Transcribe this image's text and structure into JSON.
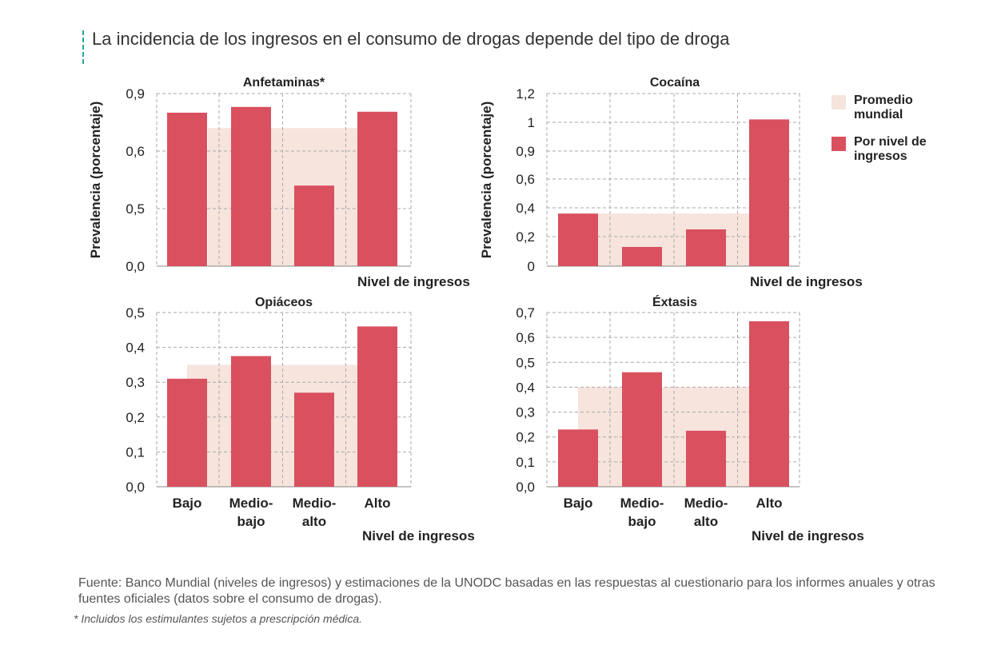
{
  "title": "La incidencia de los ingresos en el consumo de drogas depende del tipo de droga",
  "legend": {
    "average_label": "Promedio mundial",
    "income_label": "Por nivel de ingresos"
  },
  "colors": {
    "bar": "#d9505f",
    "average": "#f6e4dd",
    "grid": "#aaaaaa",
    "accent": "#2ba3a8"
  },
  "source": "Fuente: Banco Mundial (niveles de ingresos) y estimaciones de la UNODC basadas en las respuestas al cuestionario para los informes anuales y otras fuentes oficiales (datos sobre el consumo de drogas).",
  "footnote": "* Incluidos los estimulantes sujetos a prescripción médica.",
  "chart_data": [
    {
      "type": "bar",
      "title": "Anfetaminas*",
      "ylabel": "Prevalencia (porcentaje)",
      "xlabel": "Nivel de ingresos",
      "categories": [
        "Bajo",
        "Medio-bajo",
        "Medio-alto",
        "Alto"
      ],
      "show_category_labels": false,
      "yticks": [
        "0,0",
        "0,5",
        "0,6",
        "0,9"
      ],
      "series": [
        {
          "name": "Por nivel de ingresos",
          "values": [
            0.8,
            0.83,
            0.54,
            0.805
          ]
        },
        {
          "name": "Promedio mundial",
          "values": [
            0.72,
            0.72,
            0.72,
            0.72
          ]
        }
      ]
    },
    {
      "type": "bar",
      "title": "Cocaína",
      "ylabel": "Prevalencia (porcentaje)",
      "xlabel": "Nivel de ingresos",
      "categories": [
        "Bajo",
        "Medio-bajo",
        "Medio-alto",
        "Alto"
      ],
      "show_category_labels": false,
      "yticks": [
        "0",
        "0,2",
        "0,4",
        "0,6",
        "0,9",
        "1",
        "1,2"
      ],
      "series": [
        {
          "name": "Por nivel de ingresos",
          "values": [
            0.36,
            0.13,
            0.25,
            1.02
          ]
        },
        {
          "name": "Promedio mundial",
          "values": [
            0.36,
            0.36,
            0.36,
            0.36
          ]
        }
      ]
    },
    {
      "type": "bar",
      "title": "Opiáceos",
      "ylabel": "",
      "xlabel": "Nivel de ingresos",
      "categories": [
        "Bajo",
        "Medio-bajo",
        "Medio-alto",
        "Alto"
      ],
      "category_lines": [
        [
          "Bajo"
        ],
        [
          "Medio-",
          "bajo"
        ],
        [
          "Medio-",
          "alto"
        ],
        [
          "Alto"
        ]
      ],
      "show_category_labels": true,
      "yticks": [
        "0,0",
        "0,1",
        "0,2",
        "0,3",
        "0,4",
        "0,5"
      ],
      "ylim": [
        0,
        0.5
      ],
      "series": [
        {
          "name": "Por nivel de ingresos",
          "values": [
            0.31,
            0.375,
            0.27,
            0.46
          ]
        },
        {
          "name": "Promedio mundial",
          "values": [
            0.35,
            0.35,
            0.35,
            0.35
          ]
        }
      ]
    },
    {
      "type": "bar",
      "title": "Éxtasis",
      "ylabel": "",
      "xlabel": "Nivel de ingresos",
      "categories": [
        "Bajo",
        "Medio-bajo",
        "Medio-alto",
        "Alto"
      ],
      "category_lines": [
        [
          "Bajo"
        ],
        [
          "Medio-",
          "bajo"
        ],
        [
          "Medio-",
          "alto"
        ],
        [
          "Alto"
        ]
      ],
      "show_category_labels": true,
      "yticks": [
        "0,0",
        "0,1",
        "0,2",
        "0,3",
        "0,4",
        "0,5",
        "0,6",
        "0,7"
      ],
      "ylim": [
        0,
        0.7
      ],
      "series": [
        {
          "name": "Por nivel de ingresos",
          "values": [
            0.23,
            0.46,
            0.225,
            0.665
          ]
        },
        {
          "name": "Promedio mundial",
          "values": [
            0.4,
            0.4,
            0.4,
            0.4
          ]
        }
      ]
    }
  ]
}
